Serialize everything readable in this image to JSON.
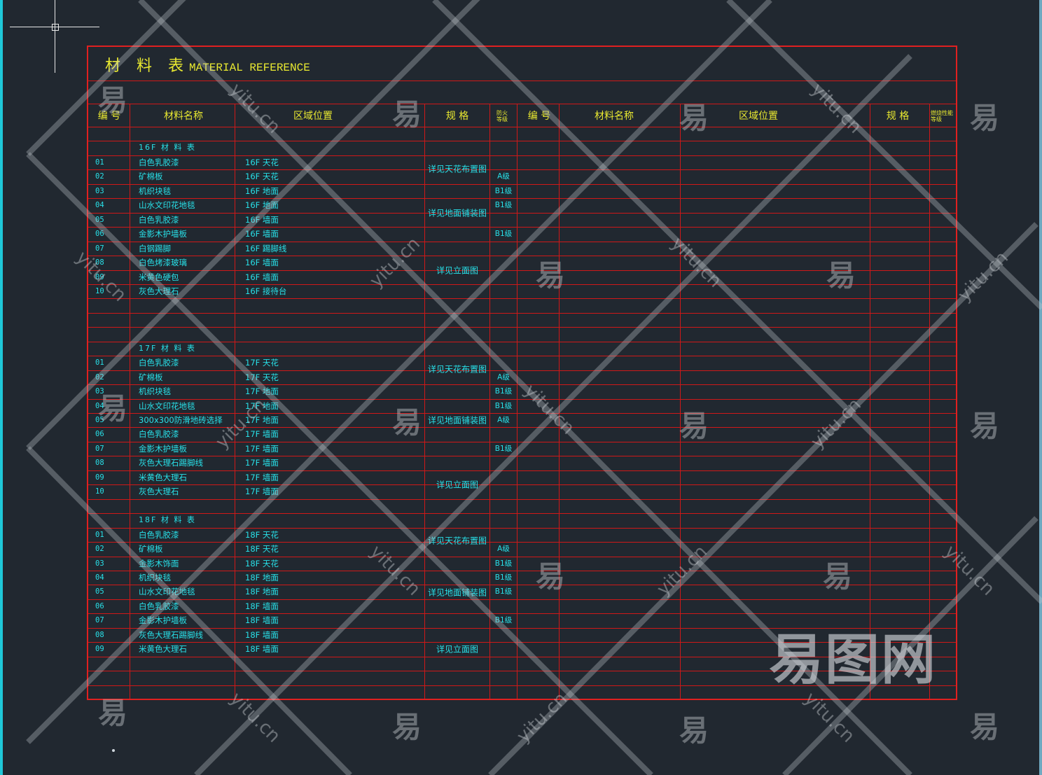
{
  "title": {
    "cn": "材 料 表",
    "en": "MATERIAL REFERENCE"
  },
  "headers": {
    "no": "编 号",
    "name": "材料名称",
    "area": "区域位置",
    "spec": "规  格",
    "fire": "防火等级",
    "no2": "编 号",
    "name2": "材料名称",
    "area2": "区域位置",
    "spec2": "规  格",
    "burn": "燃烧性能等级"
  },
  "sections": [
    {
      "heading": "16F 材 料 表",
      "rows": [
        {
          "no": "01",
          "name": "白色乳胶漆",
          "area": "16F 天花",
          "grade": ""
        },
        {
          "no": "02",
          "name": "矿棉板",
          "area": "16F 天花",
          "grade": "A级"
        },
        {
          "no": "03",
          "name": "机织块毯",
          "area": "16F 地面",
          "grade": "B1级"
        },
        {
          "no": "04",
          "name": "山水文印花地毯",
          "area": "16F 地面",
          "grade": "B1级"
        },
        {
          "no": "05",
          "name": "白色乳胶漆",
          "area": "16F 墙面",
          "grade": ""
        },
        {
          "no": "06",
          "name": "金影木护墙板",
          "area": "16F 墙面",
          "grade": "B1级"
        },
        {
          "no": "07",
          "name": "白钢踢脚",
          "area": "16F 踢脚线",
          "grade": ""
        },
        {
          "no": "08",
          "name": "白色烤漆玻璃",
          "area": "16F 墙面",
          "grade": ""
        },
        {
          "no": "09",
          "name": "米黄色硬包",
          "area": "16F 墙面",
          "grade": ""
        },
        {
          "no": "10",
          "name": "灰色大理石",
          "area": "16F 接待台",
          "grade": ""
        }
      ],
      "specs": [
        "详见天花布置图",
        "详见地面铺装图",
        "详见立面图"
      ]
    },
    {
      "heading": "17F 材 料 表",
      "rows": [
        {
          "no": "01",
          "name": "白色乳胶漆",
          "area": "17F 天花",
          "grade": ""
        },
        {
          "no": "02",
          "name": "矿棉板",
          "area": "17F 天花",
          "grade": "A级"
        },
        {
          "no": "03",
          "name": "机织块毯",
          "area": "17F 地面",
          "grade": "B1级"
        },
        {
          "no": "04",
          "name": "山水文印花地毯",
          "area": "17F 地面",
          "grade": "B1级"
        },
        {
          "no": "05",
          "name": "300x300防滑地砖选择",
          "area": "17F 地面",
          "grade": "A级"
        },
        {
          "no": "06",
          "name": "白色乳胶漆",
          "area": "17F 墙面",
          "grade": ""
        },
        {
          "no": "07",
          "name": "金影木护墙板",
          "area": "17F 墙面",
          "grade": "B1级"
        },
        {
          "no": "08",
          "name": "灰色大理石踢脚线",
          "area": "17F 墙面",
          "grade": ""
        },
        {
          "no": "09",
          "name": "米黄色大理石",
          "area": "17F 墙面",
          "grade": ""
        },
        {
          "no": "10",
          "name": "灰色大理石",
          "area": "17F 墙面",
          "grade": ""
        }
      ],
      "specs": [
        "详见天花布置图",
        "详见地面铺装图",
        "详见立面图"
      ]
    },
    {
      "heading": "18F 材 料 表",
      "rows": [
        {
          "no": "01",
          "name": "白色乳胶漆",
          "area": "18F 天花",
          "grade": ""
        },
        {
          "no": "02",
          "name": "矿棉板",
          "area": "18F 天花",
          "grade": "A级"
        },
        {
          "no": "03",
          "name": "金影木饰面",
          "area": "18F 天花",
          "grade": "B1级"
        },
        {
          "no": "04",
          "name": "机织块毯",
          "area": "18F 地面",
          "grade": "B1级"
        },
        {
          "no": "05",
          "name": "山水文印花地毯",
          "area": "18F 地面",
          "grade": "B1级"
        },
        {
          "no": "06",
          "name": "白色乳胶漆",
          "area": "18F 墙面",
          "grade": ""
        },
        {
          "no": "07",
          "name": "金影木护墙板",
          "area": "18F 墙面",
          "grade": "B1级"
        },
        {
          "no": "08",
          "name": "灰色大理石踢脚线",
          "area": "18F 墙面",
          "grade": ""
        },
        {
          "no": "09",
          "name": "米黄色大理石",
          "area": "18F 墙面",
          "grade": ""
        }
      ],
      "specs": [
        "详见天花布置图",
        "详见地面铺装图",
        "详见立面图"
      ]
    }
  ],
  "watermark": {
    "text": "yitu.cn",
    "glyph": "易",
    "logo": "易图网"
  },
  "colors": {
    "grid": "#d01818",
    "header_text": "#e8e830",
    "cell_text": "#28e0e8",
    "background": "#212830"
  }
}
